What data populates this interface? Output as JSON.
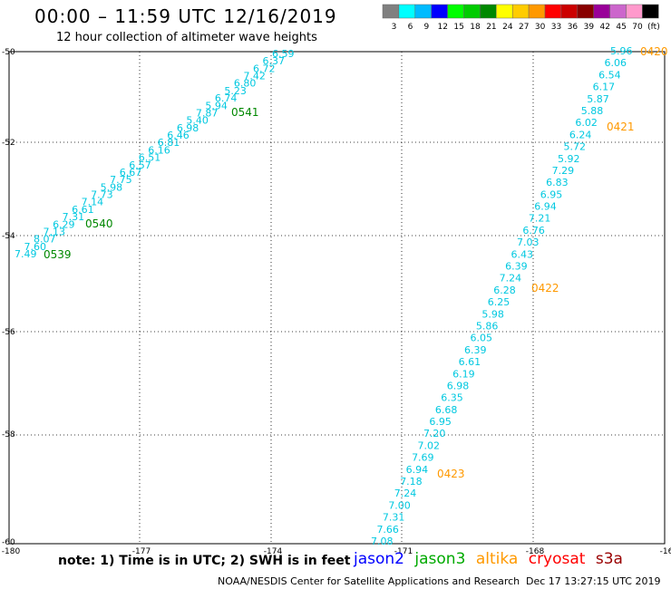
{
  "title": "00:00 – 11:59 UTC 12/16/2019",
  "subtitle": "12 hour collection of altimeter wave heights",
  "colorbar": {
    "colors": [
      "#808080",
      "#00ffff",
      "#00bbff",
      "#0000ff",
      "#00ff00",
      "#00cc00",
      "#008800",
      "#ffff00",
      "#ffcc00",
      "#ff9900",
      "#ff0000",
      "#cc0000",
      "#880000",
      "#990099",
      "#cc66cc",
      "#ff99cc",
      "#000000"
    ],
    "labels": [
      "3",
      "6",
      "9",
      "12",
      "15",
      "18",
      "21",
      "24",
      "27",
      "30",
      "33",
      "36",
      "39",
      "42",
      "45",
      "70",
      "(ft)"
    ]
  },
  "axes": {
    "lon_ticks": [
      "-180",
      "-177",
      "-174",
      "-171",
      "-168",
      "-16"
    ],
    "lat_ticks": [
      "-50",
      "-52",
      "-54",
      "-56",
      "-58",
      "-60"
    ]
  },
  "track_west": {
    "values": [
      "7.49",
      "7.60",
      "8.07",
      "7.13",
      "6.29",
      "7.31",
      "6.61",
      "7.14",
      "7.73",
      "5.98",
      "7.75",
      "6.67",
      "6.57",
      "6.51",
      "6.16",
      "6.81",
      "6.46",
      "6.98",
      "5.40",
      "7.87",
      "5.94",
      "6.74",
      "5.23",
      "6.80",
      "7.42",
      "6.72",
      "6.37",
      "6.59"
    ],
    "times": [
      "0539",
      "0540",
      "0541"
    ]
  },
  "track_east": {
    "values": [
      "5.96",
      "6.06",
      "6.54",
      "6.17",
      "5.87",
      "5.88",
      "6.02",
      "6.24",
      "5.72",
      "5.92",
      "7.29",
      "6.83",
      "6.95",
      "6.94",
      "7.21",
      "6.76",
      "7.03",
      "6.43",
      "6.39",
      "7.24",
      "6.28",
      "6.25",
      "5.98",
      "5.86",
      "6.05",
      "6.39",
      "6.61",
      "6.19",
      "6.98",
      "6.35",
      "6.68",
      "6.95",
      "7.20",
      "7.02",
      "7.69",
      "6.94",
      "7.18",
      "7.24",
      "7.00",
      "7.31",
      "7.66",
      "7.08"
    ],
    "times": [
      "0420",
      "0421",
      "0422",
      "0423"
    ]
  },
  "colors": {
    "wave_text": "#00c8e0",
    "west_time": "#008800",
    "east_time": "#ff9900",
    "jason2": "#0000ff",
    "jason3": "#00aa00",
    "altika": "#ff9900",
    "cryosat": "#ff0000",
    "s3a": "#990000"
  },
  "note": "note: 1) Time is in UTC; 2) SWH is in feet",
  "legend": {
    "jason2": "jason2",
    "jason3": "jason3",
    "altika": "altika",
    "cryosat": "cryosat",
    "s3a": "s3a"
  },
  "credit": "NOAA/NESDIS Center for Satellite Applications and Research",
  "timestamp": "Dec 17 13:27:15 UTC 2019"
}
